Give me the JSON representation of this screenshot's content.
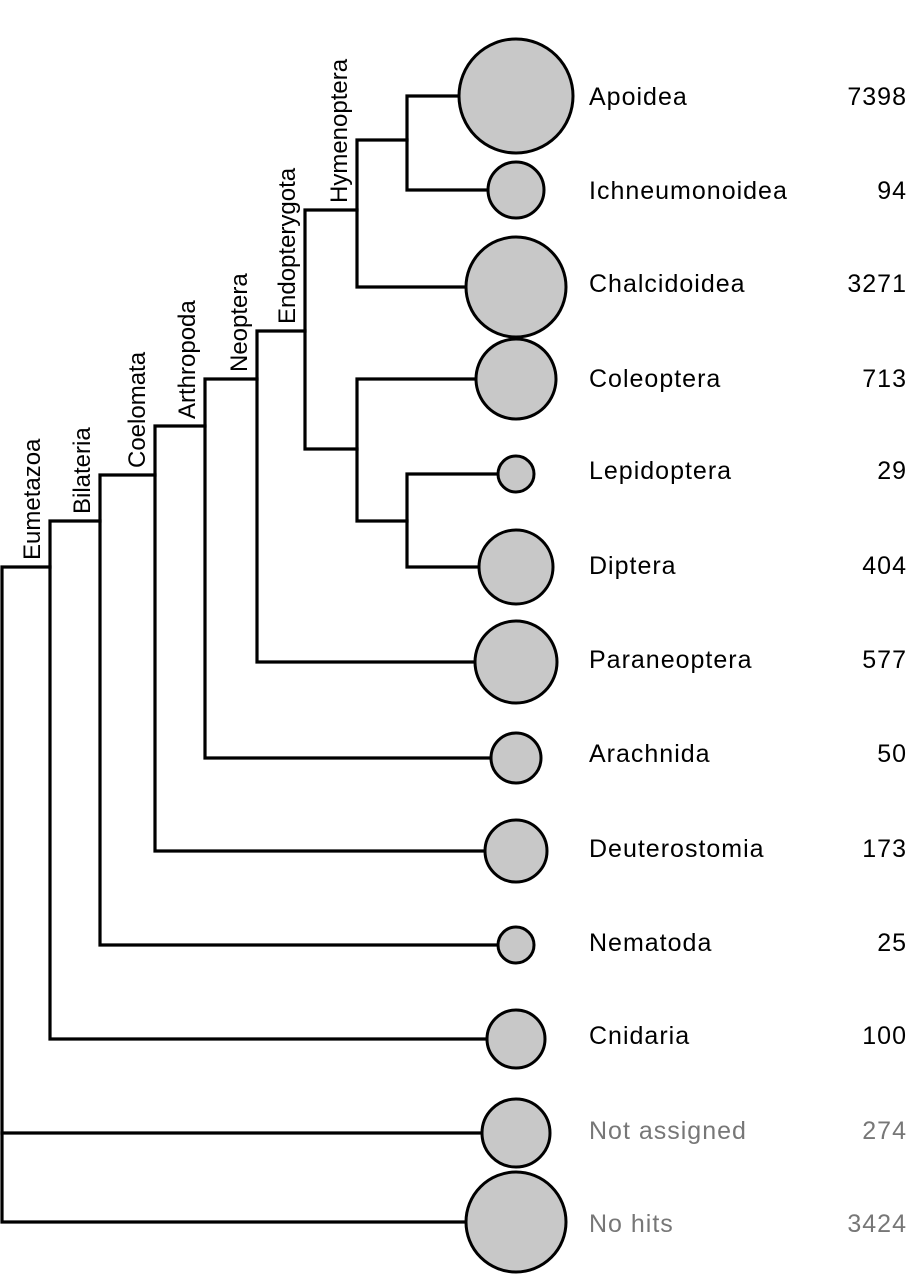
{
  "clades": [
    {
      "id": "eumetazoa",
      "label": "Eumetazoa"
    },
    {
      "id": "bilateria",
      "label": "Bilateria"
    },
    {
      "id": "coelomata",
      "label": "Coelomata"
    },
    {
      "id": "arthropoda",
      "label": "Arthropoda"
    },
    {
      "id": "neoptera",
      "label": "Neoptera"
    },
    {
      "id": "endopterygota",
      "label": "Endopterygota"
    },
    {
      "id": "hymenoptera",
      "label": "Hymenoptera"
    }
  ],
  "taxa": [
    {
      "id": "apoidea",
      "name": "Apoidea",
      "count": "7398",
      "muted": false
    },
    {
      "id": "ichneumonoidea",
      "name": "Ichneumonoidea",
      "count": "94",
      "muted": false
    },
    {
      "id": "chalcidoidea",
      "name": "Chalcidoidea",
      "count": "3271",
      "muted": false
    },
    {
      "id": "coleoptera",
      "name": "Coleoptera",
      "count": "713",
      "muted": false
    },
    {
      "id": "lepidoptera",
      "name": "Lepidoptera",
      "count": "29",
      "muted": false
    },
    {
      "id": "diptera",
      "name": "Diptera",
      "count": "404",
      "muted": false
    },
    {
      "id": "paraneoptera",
      "name": "Paraneoptera",
      "count": "577",
      "muted": false
    },
    {
      "id": "arachnida",
      "name": "Arachnida",
      "count": "50",
      "muted": false
    },
    {
      "id": "deuterostomia",
      "name": "Deuterostomia",
      "count": "173",
      "muted": false
    },
    {
      "id": "nematoda",
      "name": "Nematoda",
      "count": "25",
      "muted": false
    },
    {
      "id": "cnidaria",
      "name": "Cnidaria",
      "count": "100",
      "muted": false
    },
    {
      "id": "not-assigned",
      "name": "Not assigned",
      "count": "274",
      "muted": true
    },
    {
      "id": "no-hits",
      "name": "No hits",
      "count": "3424",
      "muted": true
    }
  ],
  "colors": {
    "node_fill": "#c8c8c8",
    "muted_text": "#777777",
    "line": "#000000"
  }
}
